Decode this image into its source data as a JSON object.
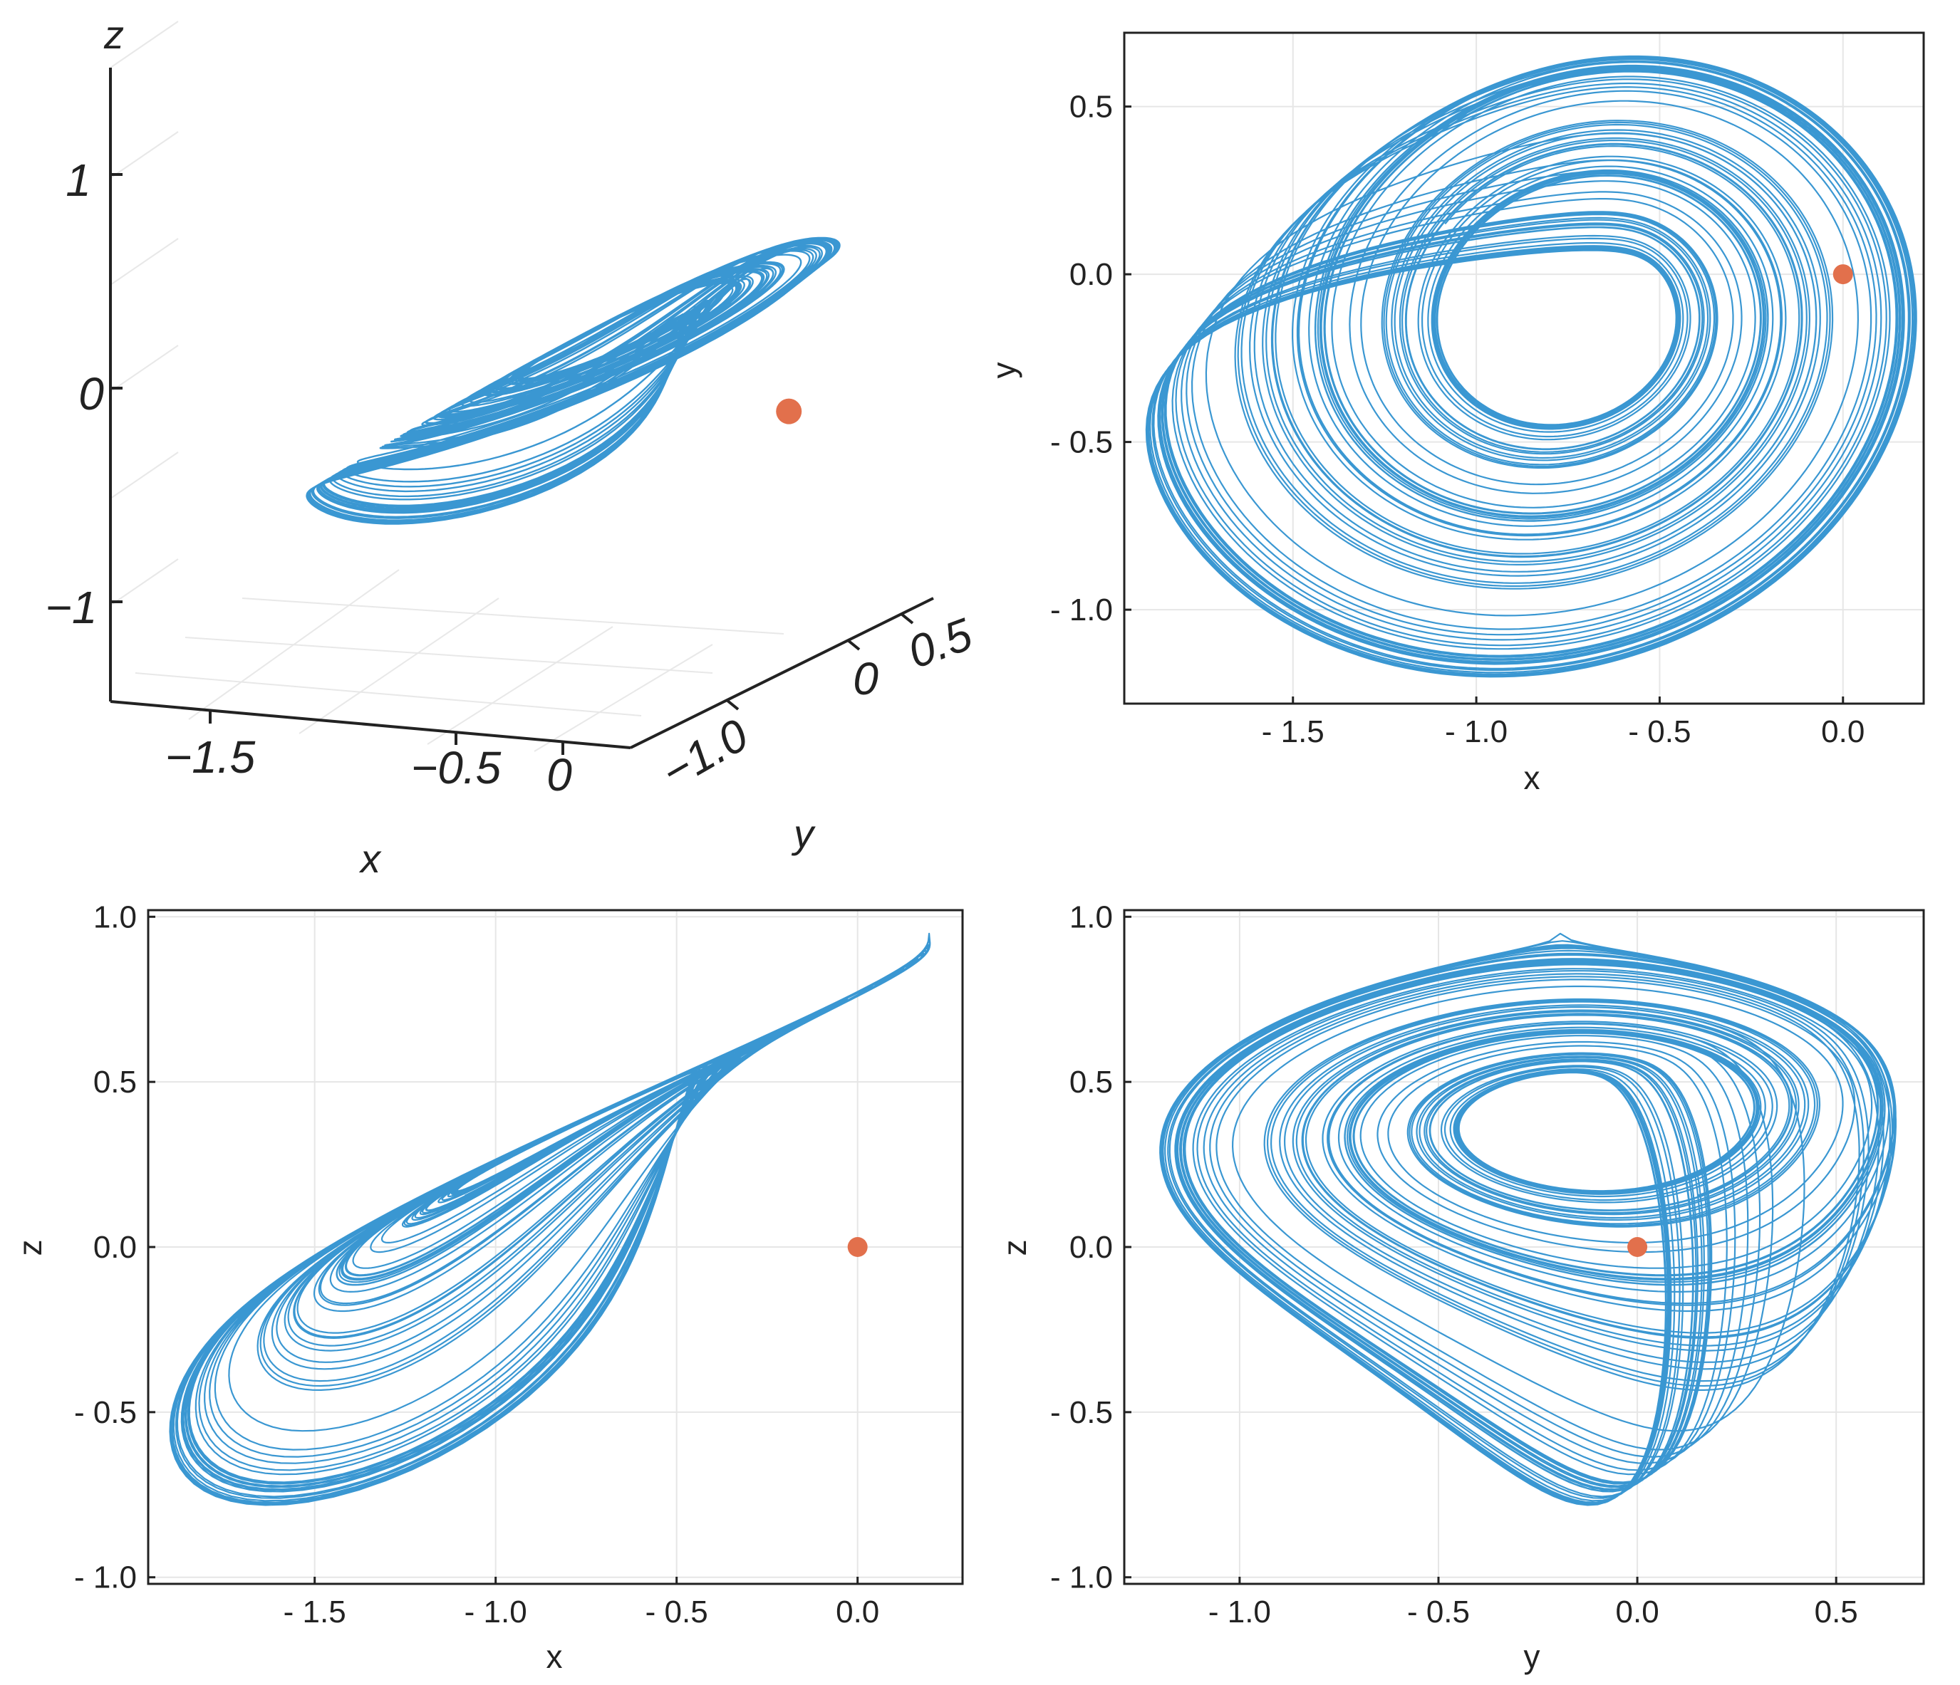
{
  "colors": {
    "trajectory": "#3a97d2",
    "marker": "#e2704c",
    "grid": "#e6e6e6",
    "axis": "#222222"
  },
  "chart_data": [
    {
      "id": "xyz-3d",
      "type": "line",
      "projection": "3d",
      "xlabel": "x",
      "ylabel": "y",
      "zlabel": "z",
      "xlim": [
        -2.0,
        0.25
      ],
      "ylim": [
        -1.3,
        0.7
      ],
      "zlim": [
        -1.4,
        1.4
      ],
      "xticks": [
        -1.5,
        -0.5,
        0
      ],
      "xtick_labels": [
        "−1.5",
        "−0.5",
        "0"
      ],
      "yticks": [
        -1.0,
        0,
        0.5
      ],
      "ytick_labels": [
        "−1.0",
        "0",
        "0.5"
      ],
      "zticks": [
        -1,
        0,
        1
      ],
      "ztick_labels": [
        "−1",
        "0",
        "1"
      ],
      "grid": true,
      "marker": {
        "x": 0,
        "y": 0,
        "z": 0
      }
    },
    {
      "id": "xy",
      "type": "line",
      "xlabel": "x",
      "ylabel": "y",
      "xlim": [
        -1.96,
        0.22
      ],
      "ylim": [
        -1.28,
        0.72
      ],
      "xticks": [
        -1.5,
        -1.0,
        -0.5,
        0.0
      ],
      "xtick_labels": [
        "- 1.5",
        "- 1.0",
        "- 0.5",
        "0.0"
      ],
      "yticks": [
        -1.0,
        -0.5,
        0.0,
        0.5
      ],
      "ytick_labels": [
        "- 1.0",
        "- 0.5",
        "0.0",
        "0.5"
      ],
      "grid": true,
      "marker": {
        "x": 0.0,
        "y": 0.0
      }
    },
    {
      "id": "xz",
      "type": "line",
      "xlabel": "x",
      "zlabel": "z",
      "xlim": [
        -1.96,
        0.29
      ],
      "ylim": [
        -1.02,
        1.02
      ],
      "xticks": [
        -1.5,
        -1.0,
        -0.5,
        0.0
      ],
      "xtick_labels": [
        "- 1.5",
        "- 1.0",
        "- 0.5",
        "0.0"
      ],
      "yticks": [
        -1.0,
        -0.5,
        0.0,
        0.5,
        1.0
      ],
      "ytick_labels": [
        "- 1.0",
        "- 0.5",
        "0.0",
        "0.5",
        "1.0"
      ],
      "grid": true,
      "marker": {
        "x": 0.0,
        "z": 0.0
      }
    },
    {
      "id": "yz",
      "type": "line",
      "xlabel": "y",
      "zlabel": "z",
      "xlim": [
        -1.29,
        0.72
      ],
      "ylim": [
        -1.02,
        1.02
      ],
      "xticks": [
        -1.0,
        -0.5,
        0.0,
        0.5
      ],
      "xtick_labels": [
        "- 1.0",
        "- 0.5",
        "0.0",
        "0.5"
      ],
      "yticks": [
        -1.0,
        -0.5,
        0.0,
        0.5,
        1.0
      ],
      "ytick_labels": [
        "- 1.0",
        "- 0.5",
        "0.0",
        "0.5",
        "1.0"
      ],
      "grid": true,
      "marker": {
        "y": 0.0,
        "z": 0.0
      }
    }
  ]
}
